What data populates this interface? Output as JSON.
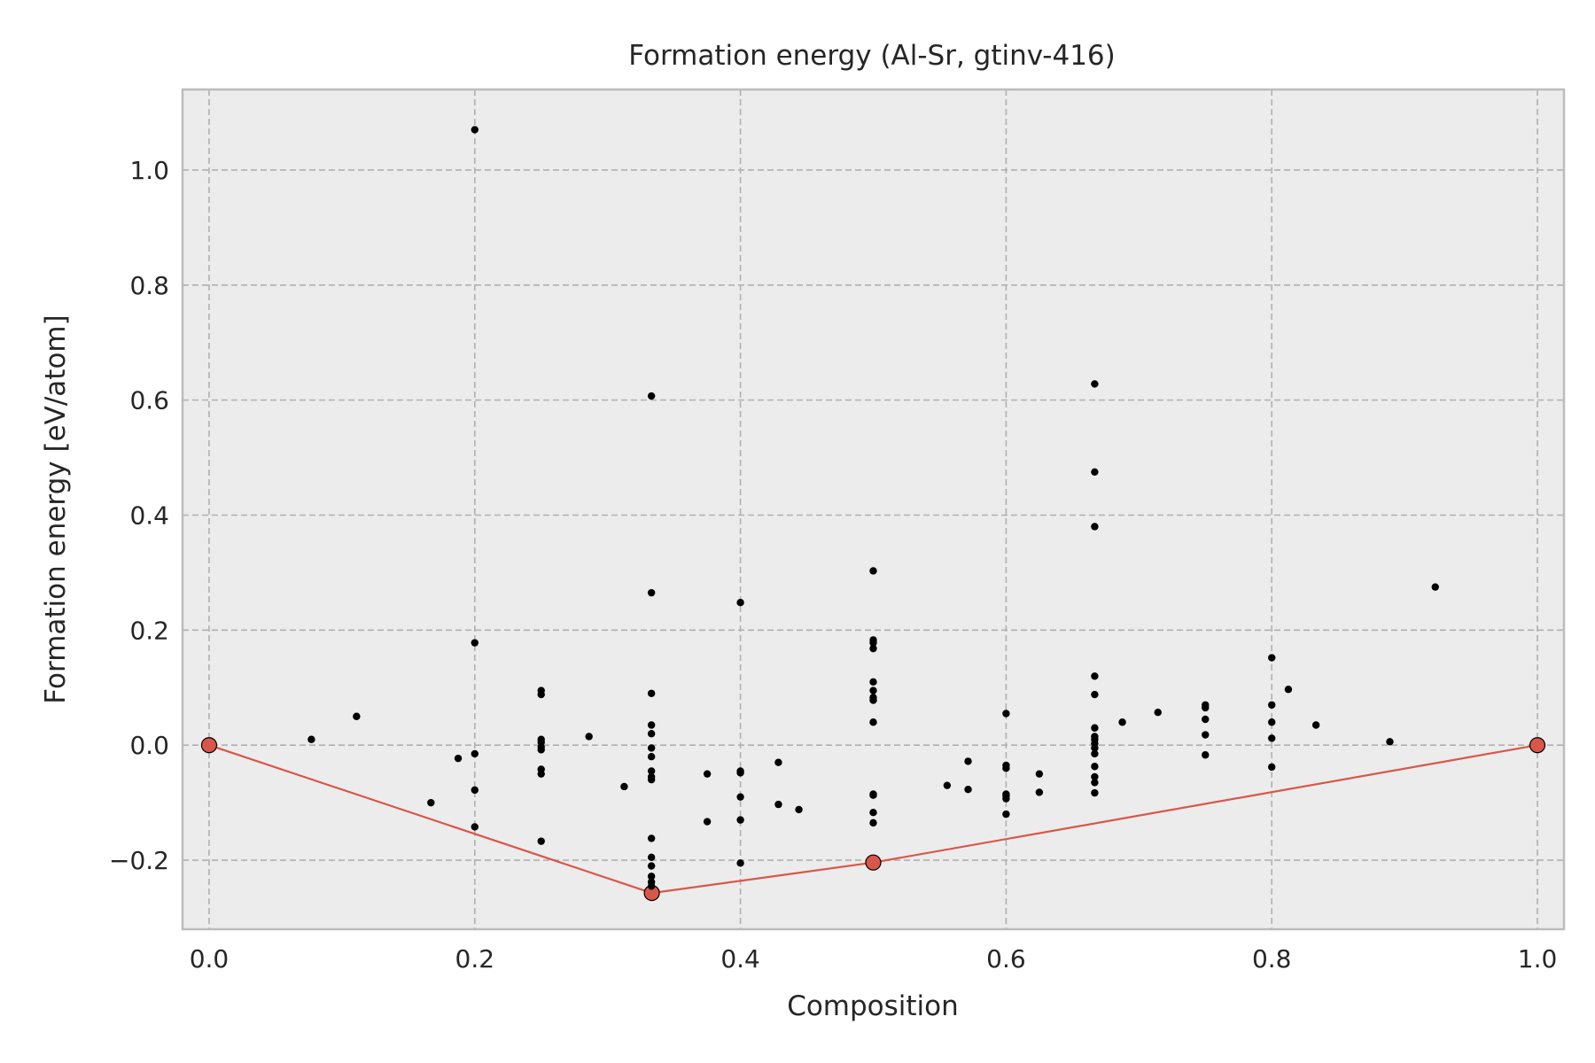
{
  "chart_data": {
    "type": "scatter",
    "title": "Formation energy (Al-Sr, gtinv-416)",
    "xlabel": "Composition",
    "ylabel": "Formation energy [eV/atom]",
    "xlim": [
      -0.02,
      1.02
    ],
    "ylim": [
      -0.32,
      1.14
    ],
    "xticks": [
      0.0,
      0.2,
      0.4,
      0.6,
      0.8,
      1.0
    ],
    "xtick_labels": [
      "0.0",
      "0.2",
      "0.4",
      "0.6",
      "0.8",
      "1.0"
    ],
    "yticks": [
      -0.2,
      0.0,
      0.2,
      0.4,
      0.6,
      0.8,
      1.0
    ],
    "ytick_labels": [
      "−0.2",
      "0.0",
      "0.2",
      "0.4",
      "0.6",
      "0.8",
      "1.0"
    ],
    "grid": true,
    "colors": {
      "background": "#ececec",
      "points": "#000000",
      "hull": "#d9574a",
      "grid": "#b0b0b0"
    },
    "series": [
      {
        "style": "scatter-points",
        "x": [
          0.077,
          0.111,
          0.167,
          0.1875,
          0.2,
          0.2,
          0.2,
          0.2,
          0.2,
          0.25,
          0.25,
          0.25,
          0.25,
          0.25,
          0.25,
          0.25,
          0.25,
          0.25,
          0.286,
          0.3125,
          0.333,
          0.333,
          0.333,
          0.333,
          0.333,
          0.333,
          0.333,
          0.333,
          0.333,
          0.333,
          0.333,
          0.333,
          0.333,
          0.333,
          0.333,
          0.333,
          0.375,
          0.375,
          0.4,
          0.4,
          0.4,
          0.4,
          0.4,
          0.4,
          0.4286,
          0.4286,
          0.444,
          0.5,
          0.5,
          0.5,
          0.5,
          0.5,
          0.5,
          0.5,
          0.5,
          0.5,
          0.5,
          0.5,
          0.5,
          0.5,
          0.5556,
          0.5714,
          0.5714,
          0.6,
          0.6,
          0.6,
          0.6,
          0.6,
          0.6,
          0.6,
          0.625,
          0.625,
          0.6667,
          0.6667,
          0.6667,
          0.6667,
          0.6667,
          0.6667,
          0.6667,
          0.6667,
          0.6667,
          0.6667,
          0.6667,
          0.6667,
          0.6667,
          0.6667,
          0.6667,
          0.6875,
          0.7143,
          0.75,
          0.75,
          0.75,
          0.75,
          0.75,
          0.8,
          0.8,
          0.8,
          0.8,
          0.8,
          0.8125,
          0.8333,
          0.8889,
          0.9231
        ],
        "y": [
          0.01,
          0.05,
          -0.1,
          -0.023,
          1.07,
          0.178,
          -0.015,
          -0.078,
          -0.142,
          0.095,
          0.088,
          0.01,
          0.005,
          -0.003,
          -0.008,
          -0.042,
          -0.05,
          -0.167,
          0.015,
          -0.072,
          0.607,
          0.265,
          0.09,
          0.035,
          0.02,
          -0.005,
          -0.02,
          -0.045,
          -0.055,
          -0.06,
          -0.162,
          -0.195,
          -0.21,
          -0.228,
          -0.238,
          -0.245,
          -0.05,
          -0.133,
          0.248,
          -0.045,
          -0.048,
          -0.09,
          -0.13,
          -0.205,
          -0.03,
          -0.103,
          -0.112,
          0.303,
          0.183,
          0.178,
          0.168,
          0.11,
          0.095,
          0.083,
          0.078,
          0.04,
          -0.085,
          -0.087,
          -0.117,
          -0.135,
          -0.07,
          -0.028,
          -0.077,
          0.055,
          -0.035,
          -0.04,
          -0.085,
          -0.093,
          -0.12,
          -0.088,
          -0.05,
          -0.082,
          0.628,
          0.475,
          0.38,
          0.12,
          0.088,
          0.03,
          0.015,
          0.01,
          0.003,
          -0.005,
          -0.015,
          -0.037,
          -0.055,
          -0.065,
          -0.083,
          0.04,
          0.057,
          0.07,
          0.065,
          0.045,
          0.018,
          -0.017,
          0.152,
          0.07,
          0.04,
          0.012,
          -0.038,
          0.097,
          0.035,
          0.006,
          0.275
        ]
      },
      {
        "style": "convex-hull",
        "x": [
          0.0,
          0.3333,
          0.5,
          1.0
        ],
        "y": [
          0.0,
          -0.257,
          -0.204,
          0.0
        ]
      }
    ]
  }
}
